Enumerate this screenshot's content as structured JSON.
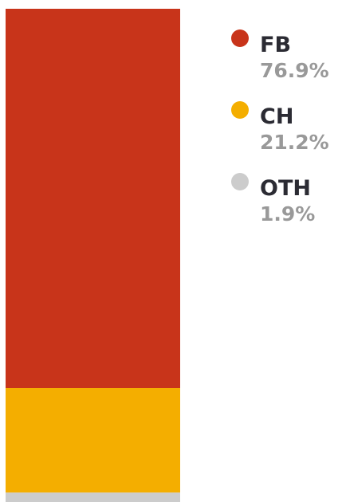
{
  "chart_data": {
    "type": "bar",
    "stacked": true,
    "series": [
      {
        "name": "FB",
        "color": "#c8341a",
        "values": [
          76.9
        ],
        "value_labels": [
          "76.9%"
        ]
      },
      {
        "name": "CH",
        "color": "#f4ae00",
        "values": [
          21.2
        ],
        "value_labels": [
          "21.2%"
        ]
      },
      {
        "name": "OTH",
        "color": "#cccccc",
        "values": [
          1.9
        ],
        "value_labels": [
          "1.9%"
        ]
      }
    ]
  }
}
